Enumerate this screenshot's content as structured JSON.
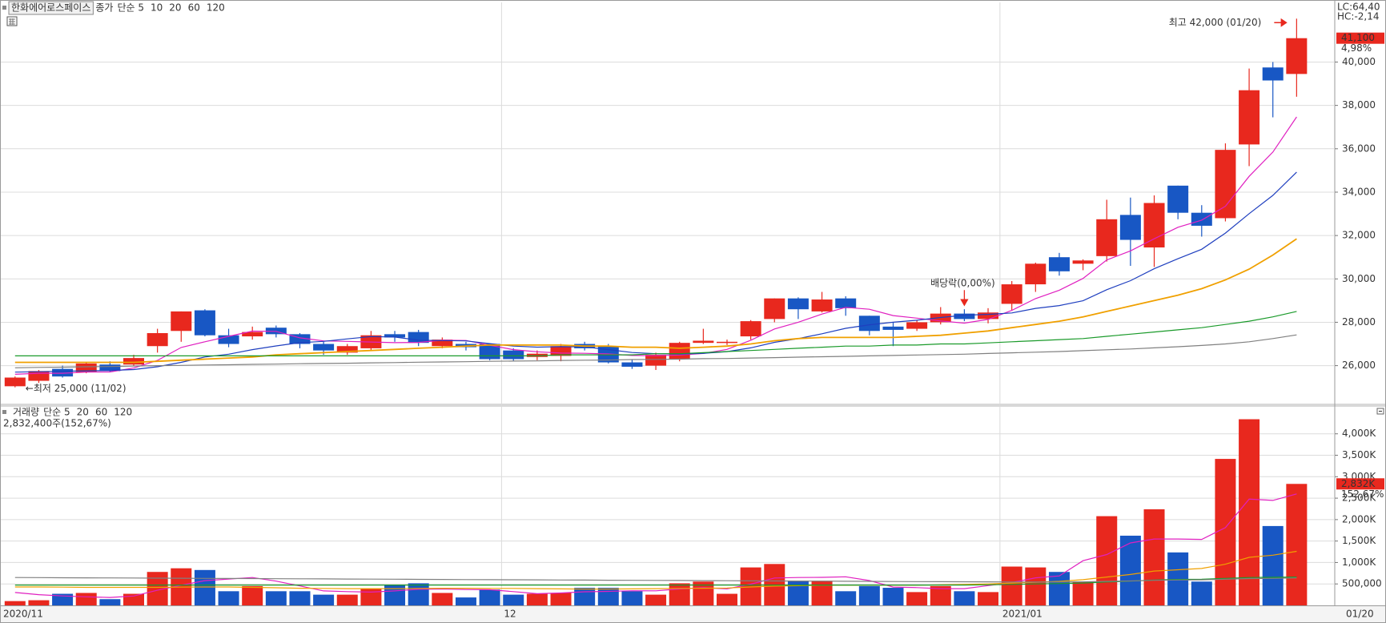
{
  "chart_data": [
    {
      "type": "candlestick",
      "title": "한화에어로스페이스",
      "legend_prefix": "종가",
      "categories": [
        "2020/11",
        null,
        null,
        null,
        null,
        null,
        null,
        null,
        null,
        null,
        null,
        null,
        null,
        null,
        null,
        null,
        null,
        null,
        null,
        null,
        null,
        "12",
        null,
        null,
        null,
        null,
        null,
        null,
        null,
        null,
        null,
        null,
        null,
        null,
        null,
        null,
        null,
        null,
        null,
        null,
        null,
        null,
        "2021/01",
        null,
        null,
        null,
        null,
        null,
        null,
        null,
        null,
        null,
        null,
        null,
        "01/20"
      ],
      "open": [
        25050,
        25300,
        25850,
        25700,
        26050,
        26050,
        26900,
        27600,
        28550,
        27400,
        27350,
        27750,
        27450,
        27000,
        26600,
        26800,
        27450,
        27550,
        26900,
        27000,
        27000,
        26700,
        26400,
        26450,
        27000,
        26900,
        26150,
        26000,
        26300,
        27050,
        27050,
        27350,
        28150,
        29100,
        28500,
        29100,
        28300,
        27800,
        27700,
        28000,
        28400,
        28150,
        28850,
        29750,
        31000,
        30700,
        31050,
        32950,
        31450,
        34300,
        33050,
        32800,
        36200,
        39750,
        39450
      ],
      "high": [
        25500,
        25800,
        26000,
        26150,
        26200,
        26500,
        27700,
        28500,
        28600,
        27700,
        27800,
        27850,
        27500,
        27100,
        27000,
        27600,
        27600,
        27650,
        27300,
        27100,
        27000,
        26800,
        26700,
        27000,
        27100,
        27000,
        26300,
        26600,
        27100,
        27700,
        27200,
        28100,
        29100,
        29150,
        29400,
        29200,
        28300,
        28000,
        28100,
        28700,
        28600,
        28650,
        29900,
        30750,
        31200,
        30900,
        33650,
        33750,
        33850,
        34300,
        33400,
        36250,
        39700,
        40000,
        42000
      ],
      "low": [
        25000,
        25200,
        25450,
        25650,
        25700,
        26000,
        26600,
        27100,
        27350,
        26850,
        27200,
        27300,
        26800,
        26500,
        26500,
        26700,
        27100,
        26900,
        26800,
        26700,
        26250,
        26200,
        26250,
        26200,
        26700,
        26100,
        25850,
        25800,
        26200,
        27000,
        26950,
        27200,
        28000,
        28150,
        28450,
        28300,
        27400,
        26900,
        27600,
        27900,
        28050,
        27950,
        28550,
        29400,
        30150,
        30400,
        30800,
        30600,
        30550,
        32750,
        31950,
        32650,
        35200,
        37450,
        38400
      ],
      "close": [
        25450,
        25750,
        25500,
        26100,
        25750,
        26350,
        27500,
        28500,
        27400,
        27000,
        27550,
        27450,
        27000,
        26700,
        26900,
        27400,
        27300,
        27050,
        27200,
        26850,
        26300,
        26300,
        26550,
        26900,
        26800,
        26150,
        25950,
        26500,
        27050,
        27150,
        27100,
        28050,
        29100,
        28600,
        29050,
        28650,
        27600,
        27650,
        28000,
        28400,
        28150,
        28450,
        29750,
        30700,
        30350,
        30850,
        32750,
        31800,
        33500,
        33050,
        32450,
        35950,
        38700,
        39150,
        41100
      ],
      "up_color": "#e8281e",
      "down_color": "#1857c4",
      "series": [
        {
          "name": "단순 5",
          "color": "#e020c0",
          "values": [
            25600,
            25650,
            25650,
            25700,
            25710,
            25890,
            26240,
            26840,
            27100,
            27350,
            27590,
            27580,
            27280,
            27140,
            27120,
            27090,
            27060,
            27070,
            27170,
            27160,
            26940,
            26740,
            26640,
            26580,
            26570,
            26540,
            26470,
            26460,
            26490,
            26560,
            26750,
            27170,
            27690,
            28000,
            28380,
            28690,
            28600,
            28310,
            28190,
            28060,
            27960,
            28130,
            28550,
            29090,
            29480,
            30020,
            30870,
            31290,
            31850,
            32380,
            32710,
            33350,
            34730,
            35850,
            37470
          ]
        },
        {
          "name": "10",
          "color": "#1f3fbf",
          "values": [
            25700,
            25720,
            25740,
            25760,
            25780,
            25820,
            25950,
            26150,
            26400,
            26530,
            26740,
            26910,
            27060,
            27120,
            27235,
            27340,
            27320,
            27175,
            27155,
            27140,
            27015,
            26900,
            26855,
            26875,
            26865,
            26740,
            26605,
            26550,
            26535,
            26565,
            26645,
            26820,
            27075,
            27245,
            27470,
            27720,
            27885,
            28000,
            28095,
            28220,
            28325,
            28365,
            28430,
            28640,
            28770,
            28990,
            29500,
            29920,
            30470,
            30930,
            31365,
            32110,
            33010,
            33850,
            34925
          ]
        },
        {
          "name": "20",
          "color": "#f0a000",
          "values": [
            26150,
            26150,
            26150,
            26150,
            26150,
            26150,
            26200,
            26250,
            26300,
            26350,
            26400,
            26500,
            26550,
            26600,
            26650,
            26700,
            26750,
            26800,
            26850,
            26900,
            26950,
            26950,
            26950,
            26950,
            26900,
            26900,
            26850,
            26850,
            26800,
            26850,
            26900,
            27000,
            27150,
            27250,
            27300,
            27300,
            27300,
            27300,
            27350,
            27400,
            27500,
            27600,
            27750,
            27900,
            28050,
            28250,
            28500,
            28750,
            29000,
            29250,
            29550,
            29950,
            30450,
            31100,
            31850
          ]
        },
        {
          "name": "60",
          "color": "#1a9a2a",
          "values": [
            26450,
            26450,
            26450,
            26450,
            26450,
            26450,
            26450,
            26450,
            26450,
            26450,
            26450,
            26450,
            26450,
            26450,
            26450,
            26450,
            26450,
            26450,
            26450,
            26450,
            26450,
            26450,
            26450,
            26500,
            26500,
            26500,
            26500,
            26550,
            26550,
            26600,
            26650,
            26700,
            26750,
            26800,
            26850,
            26900,
            26900,
            26950,
            26950,
            27000,
            27000,
            27050,
            27100,
            27150,
            27200,
            27250,
            27350,
            27450,
            27550,
            27650,
            27750,
            27900,
            28050,
            28250,
            28500
          ]
        },
        {
          "name": "120",
          "color": "#808080",
          "values": [
            25900,
            25920,
            25930,
            25950,
            25960,
            25980,
            26000,
            26010,
            26030,
            26040,
            26060,
            26070,
            26090,
            26100,
            26110,
            26130,
            26140,
            26160,
            26170,
            26180,
            26200,
            26210,
            26220,
            26240,
            26250,
            26260,
            26280,
            26290,
            26300,
            26320,
            26330,
            26350,
            26370,
            26390,
            26410,
            26430,
            26450,
            26470,
            26490,
            26510,
            26530,
            26560,
            26590,
            26620,
            26650,
            26690,
            26730,
            26770,
            26820,
            26870,
            26930,
            27000,
            27100,
            27250,
            27420
          ]
        }
      ],
      "ylim": [
        24250,
        42750
      ],
      "yticks": [
        {
          "value": 26000,
          "label": "26,000"
        },
        {
          "value": 28000,
          "label": "28,000"
        },
        {
          "value": 30000,
          "label": "30,000"
        },
        {
          "value": 32000,
          "label": "32,000"
        },
        {
          "value": 34000,
          "label": "34,000"
        },
        {
          "value": 36000,
          "label": "36,000"
        },
        {
          "value": 38000,
          "label": "38,000"
        },
        {
          "value": 40000,
          "label": "40,000"
        }
      ],
      "grid": true,
      "indicators": [
        {
          "text": "LC:64,40",
          "color": "#e8281e"
        },
        {
          "text": "HC:-2,14",
          "color": "#1857c4"
        }
      ],
      "last_value_label": "41,100",
      "last_change_label": "4,98%",
      "annotations": [
        {
          "text": "최고 42,000 (01/20)"
        },
        {
          "text": "←최저 25,000 (11/02)"
        },
        {
          "text": "배당락(0,00%)"
        }
      ]
    },
    {
      "type": "volume",
      "legend_prefix": "거래량",
      "legend_prefix_color": "#139c9c",
      "subtitle": "2,832,400주(152,67%)",
      "values": [
        100,
        120,
        270,
        290,
        145,
        270,
        780,
        865,
        825,
        330,
        450,
        330,
        330,
        250,
        250,
        390,
        470,
        515,
        290,
        185,
        370,
        250,
        270,
        290,
        410,
        410,
        330,
        250,
        515,
        555,
        270,
        885,
        965,
        575,
        575,
        330,
        450,
        410,
        310,
        450,
        330,
        310,
        905,
        885,
        780,
        555,
        2080,
        1625,
        2240,
        1235,
        555,
        3415,
        4340,
        1850,
        2832.4
      ],
      "series": [
        {
          "name": "단순 5",
          "color": "#e020c0",
          "values": [
            300,
            250,
            220,
            200,
            185,
            219,
            353,
            470,
            577,
            614,
            650,
            566,
            453,
            338,
            322,
            310,
            338,
            375,
            383,
            370,
            366,
            322,
            273,
            289,
            318,
            326,
            342,
            340,
            383,
            413,
            385,
            495,
            638,
            650,
            654,
            666,
            579,
            428,
            415,
            390,
            390,
            461,
            532,
            643,
            687,
            1041,
            1185,
            1456,
            1547,
            1547,
            1538,
            1812,
            2477,
            2447,
            2598
          ]
        },
        {
          "name": "20",
          "color": "#f0a000",
          "values": [
            430,
            430,
            425,
            420,
            420,
            420,
            420,
            425,
            430,
            430,
            420,
            410,
            400,
            395,
            390,
            390,
            390,
            395,
            400,
            400,
            395,
            395,
            390,
            385,
            380,
            380,
            385,
            390,
            395,
            400,
            405,
            430,
            450,
            460,
            470,
            470,
            470,
            470,
            470,
            480,
            490,
            500,
            520,
            540,
            560,
            600,
            660,
            720,
            800,
            830,
            860,
            960,
            1120,
            1170,
            1260
          ]
        },
        {
          "name": "60",
          "color": "#1a9a2a",
          "values": [
            475,
            475,
            475,
            475,
            475,
            475,
            475,
            475,
            475,
            475,
            475,
            475,
            475,
            475,
            475,
            475,
            475,
            475,
            475,
            475,
            475,
            475,
            475,
            475,
            475,
            475,
            475,
            475,
            475,
            475,
            475,
            475,
            475,
            475,
            475,
            475,
            475,
            475,
            475,
            475,
            475,
            480,
            490,
            500,
            510,
            520,
            545,
            565,
            590,
            605,
            610,
            630,
            650,
            655,
            660
          ]
        },
        {
          "name": "120",
          "color": "#808080",
          "values": [
            650,
            648,
            645,
            643,
            640,
            638,
            635,
            632,
            630,
            628,
            625,
            622,
            620,
            618,
            615,
            612,
            610,
            607,
            605,
            602,
            600,
            597,
            595,
            592,
            590,
            587,
            585,
            582,
            580,
            577,
            575,
            572,
            570,
            567,
            565,
            562,
            560,
            557,
            555,
            552,
            550,
            548,
            546,
            544,
            545,
            548,
            560,
            570,
            585,
            592,
            595,
            610,
            625,
            630,
            640
          ]
        }
      ],
      "ylim": [
        0,
        4630
      ],
      "yticks": [
        {
          "value": 500,
          "label": "500,000"
        },
        {
          "value": 1000,
          "label": "1,000K"
        },
        {
          "value": 1500,
          "label": "1,500K"
        },
        {
          "value": 2000,
          "label": "2,000K"
        },
        {
          "value": 2500,
          "label": "2,500K"
        },
        {
          "value": 3000,
          "label": "3,000K"
        },
        {
          "value": 3500,
          "label": "3,500K"
        },
        {
          "value": 4000,
          "label": "4,000K"
        }
      ],
      "grid": true,
      "last_value_label": "2,832K",
      "last_change_label": "152,67%"
    }
  ]
}
